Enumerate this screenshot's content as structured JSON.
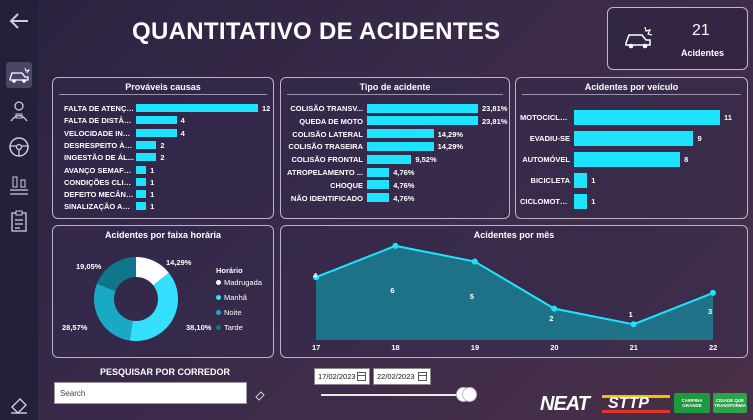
{
  "header": {
    "title": "QUANTITATIVO DE ACIDENTES"
  },
  "kpi": {
    "value": "21",
    "label": "Acidentes",
    "icon": "car-crash-icon"
  },
  "sidebar": {
    "items": [
      {
        "name": "back-arrow-icon"
      },
      {
        "name": "car-crash-icon"
      },
      {
        "name": "driver-icon"
      },
      {
        "name": "steering-wheel-icon"
      },
      {
        "name": "settings-sliders-icon"
      },
      {
        "name": "clipboard-icon"
      },
      {
        "name": "eraser-icon"
      }
    ]
  },
  "colors": {
    "bar": "#1ee3ff",
    "madrugada": "#ffffff",
    "manha": "#35e0ff",
    "noite": "#1aa9c4",
    "tarde": "#0f7588"
  },
  "search": {
    "label": "PESQUISAR POR CORREDOR",
    "placeholder": "Search"
  },
  "dates": {
    "start": "17/02/2023",
    "end": "22/02/2023"
  },
  "logos": {
    "neat": "NEAT",
    "sttp": "STTP",
    "campina": "CAMPINA GRANDE",
    "cidade": "CIDADE QUE TRANSFORMA"
  },
  "chart_data": [
    {
      "type": "bar",
      "title": "Prováveis causas",
      "categories": [
        "FALTA DE ATENÇÃO",
        "FALTA DE DISTÂN...",
        "VELOCIDADE INC...",
        "DESRESPEITO À SI...",
        "INGESTÃO DE ÁL...",
        "AVANÇO SEMAFÓ...",
        "CONDIÇÕES CLIM...",
        "DEFEITO MECÂNI...",
        "SINALIZAÇÃO AU..."
      ],
      "values": [
        12,
        4,
        4,
        2,
        2,
        1,
        1,
        1,
        1
      ],
      "labels": [
        "12",
        "4",
        "4",
        "2",
        "2",
        "1",
        "1",
        "1",
        "1"
      ],
      "max": 12
    },
    {
      "type": "bar",
      "title": "Tipo de acidente",
      "categories": [
        "COLISÃO TRANSV...",
        "QUEDA DE MOTO",
        "COLISÃO LATERAL",
        "COLISÃO TRASEIRA",
        "COLISÃO FRONTAL",
        "ATROPELAMENTO ...",
        "CHOQUE",
        "NÃO IDENTIFICADO"
      ],
      "values": [
        23.81,
        23.81,
        14.29,
        14.29,
        9.52,
        4.76,
        4.76,
        4.76
      ],
      "labels": [
        "23,81%",
        "23,81%",
        "14,29%",
        "14,29%",
        "9,52%",
        "4,76%",
        "4,76%",
        "4,76%"
      ],
      "max": 23.81
    },
    {
      "type": "bar",
      "title": "Acidentes por veículo",
      "categories": [
        "MOTOCICLETA",
        "EVADIU-SE",
        "AUTOMÓVEL",
        "BICICLETA",
        "CICLOMOTOR"
      ],
      "values": [
        11,
        9,
        8,
        1,
        1
      ],
      "labels": [
        "11",
        "9",
        "8",
        "1",
        "1"
      ],
      "max": 11
    },
    {
      "type": "pie",
      "title": "Acidentes por faixa horária",
      "legend_title": "Horário",
      "categories": [
        "Madrugada",
        "Manhã",
        "Noite",
        "Tarde"
      ],
      "values": [
        14.29,
        38.1,
        28.57,
        19.05
      ],
      "labels": [
        "14,29%",
        "38,10%",
        "28,57%",
        "19,05%"
      ]
    },
    {
      "type": "area",
      "title": "Acidentes por mês",
      "x": [
        "17",
        "18",
        "19",
        "20",
        "21",
        "22"
      ],
      "values": [
        4,
        6,
        5,
        2,
        1,
        3
      ],
      "ylim": [
        0,
        6.5
      ]
    }
  ]
}
